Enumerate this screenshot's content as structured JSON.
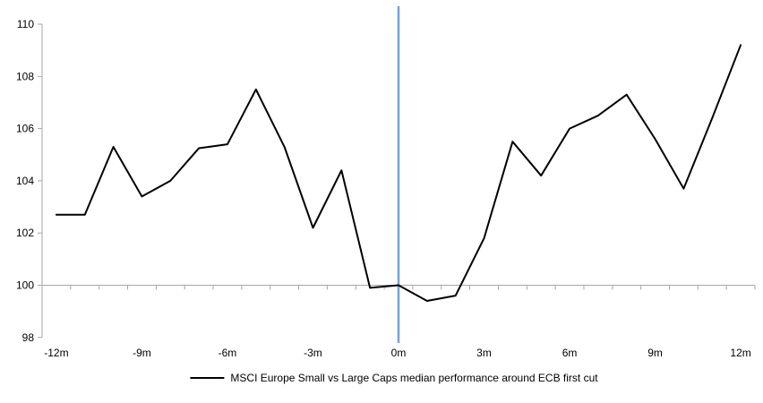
{
  "chart_data": {
    "type": "line",
    "title": "",
    "xlabel": "",
    "ylabel": "",
    "x_months": [
      -12,
      -11,
      -10,
      -9,
      -8,
      -7,
      -6,
      -5,
      -4,
      -3,
      -2,
      -1,
      0,
      1,
      2,
      3,
      4,
      5,
      6,
      7,
      8,
      9,
      10,
      11,
      12
    ],
    "series": [
      {
        "name": "MSCI Europe Small vs Large Caps median performance around ECB first cut",
        "color": "#000000",
        "values": [
          102.7,
          102.7,
          105.3,
          103.4,
          104.0,
          105.25,
          105.4,
          107.5,
          105.3,
          102.2,
          104.4,
          99.9,
          100.0,
          99.4,
          99.6,
          101.8,
          105.5,
          104.2,
          106.0,
          106.5,
          107.3,
          105.6,
          103.7,
          106.4,
          109.2
        ]
      }
    ],
    "x_tick_labels": [
      "-12m",
      "-9m",
      "-6m",
      "-3m",
      "0m",
      "3m",
      "6m",
      "9m",
      "12m"
    ],
    "x_tick_months": [
      -12,
      -9,
      -6,
      -3,
      0,
      3,
      6,
      9,
      12
    ],
    "y_ticks": [
      98,
      100,
      102,
      104,
      106,
      108,
      110
    ],
    "ylim": [
      98,
      110
    ],
    "xlim_months": [
      -12.5,
      12.5
    ],
    "baseline_value": 100,
    "grid": "single horizontal gridline at 100 with monthly tick marks",
    "legend_position": "bottom",
    "event_line": {
      "month": 0,
      "color": "#75a3d4"
    },
    "axis_color": "#a6a6a6",
    "text_color": "#000000"
  }
}
